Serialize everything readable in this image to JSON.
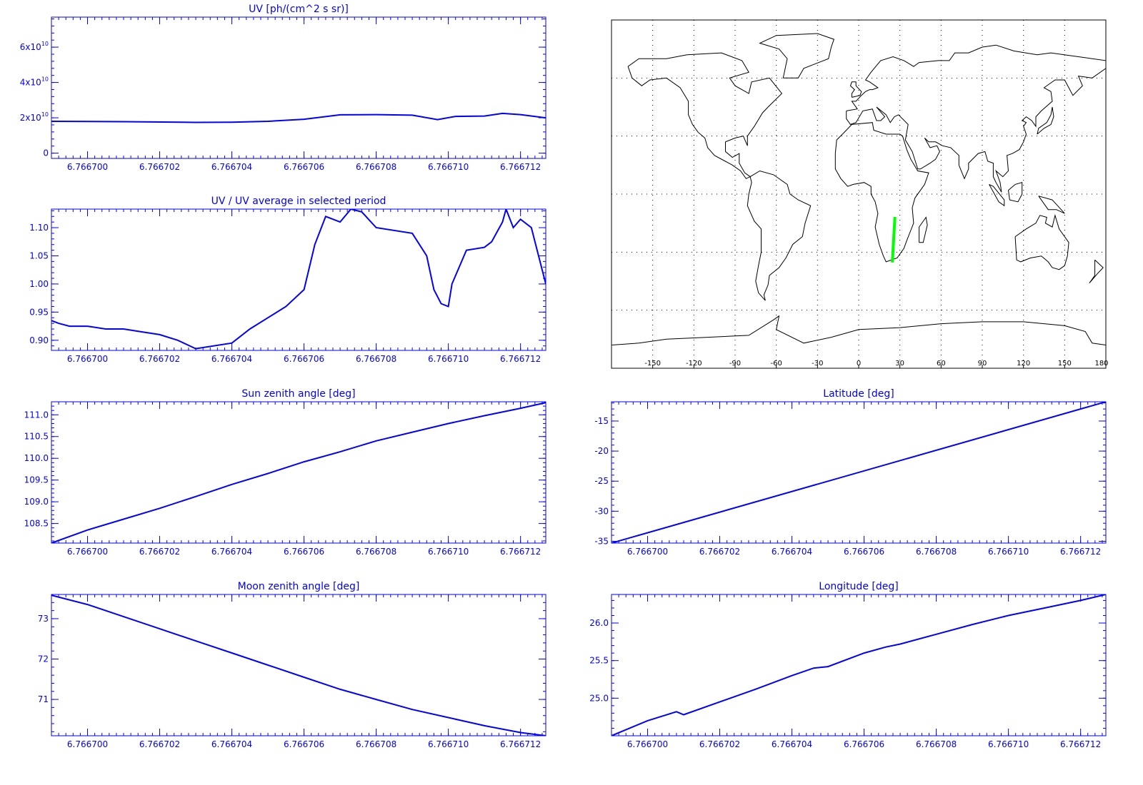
{
  "colors": {
    "axis": "#0000ff",
    "series": "#0000ff",
    "map_outline": "#000000",
    "track": "#00ff00",
    "background": "#ffffff"
  },
  "chart_data": [
    {
      "type": "line",
      "title": "UV [ph/(cm^2 s sr)]",
      "xlim": [
        6.766699,
        6.7667127
      ],
      "ylim": [
        -3000000000,
        77000000000
      ],
      "y_ticks": [
        {
          "v": 0,
          "base": "0",
          "exp": ""
        },
        {
          "v": 20000000000,
          "base": "2x10",
          "exp": "10"
        },
        {
          "v": 40000000000,
          "base": "4x10",
          "exp": "10"
        },
        {
          "v": 60000000000,
          "base": "6x10",
          "exp": "10"
        }
      ],
      "x": [
        6.766699,
        6.766701,
        6.766703,
        6.766704,
        6.766705,
        6.766706,
        6.766707,
        6.766708,
        6.766709,
        6.7667097,
        6.7667102,
        6.766711,
        6.7667115,
        6.766712,
        6.7667127
      ],
      "y": [
        18000000000,
        17800000000,
        17400000000,
        17500000000,
        18000000000,
        19200000000,
        21700000000,
        21800000000,
        21500000000,
        19000000000,
        20800000000,
        21000000000,
        22500000000,
        21800000000,
        20000000000
      ]
    },
    {
      "type": "line",
      "title": "UV / UV average in selected period",
      "xlim": [
        6.766699,
        6.7667127
      ],
      "ylim": [
        0.882,
        1.133
      ],
      "y_ticks": [
        {
          "v": 0.9,
          "base": "0.90",
          "exp": ""
        },
        {
          "v": 0.95,
          "base": "0.95",
          "exp": ""
        },
        {
          "v": 1.0,
          "base": "1.00",
          "exp": ""
        },
        {
          "v": 1.05,
          "base": "1.05",
          "exp": ""
        },
        {
          "v": 1.1,
          "base": "1.10",
          "exp": ""
        }
      ],
      "x": [
        6.766699,
        6.7666992,
        6.7666995,
        6.7667,
        6.7667005,
        6.766701,
        6.7667015,
        6.766702,
        6.7667025,
        6.766703,
        6.766704,
        6.7667045,
        6.766705,
        6.7667055,
        6.766706,
        6.7667063,
        6.7667066,
        6.766707,
        6.7667073,
        6.7667076,
        6.766708,
        6.766709,
        6.7667094,
        6.7667096,
        6.7667098,
        6.76671,
        6.7667101,
        6.7667105,
        6.766711,
        6.7667112,
        6.7667115,
        6.7667116,
        6.7667118,
        6.766712,
        6.7667123,
        6.7667127
      ],
      "y": [
        0.935,
        0.93,
        0.925,
        0.925,
        0.92,
        0.92,
        0.915,
        0.91,
        0.9,
        0.885,
        0.895,
        0.92,
        0.94,
        0.96,
        0.99,
        1.07,
        1.12,
        1.11,
        1.133,
        1.128,
        1.1,
        1.09,
        1.05,
        0.99,
        0.965,
        0.96,
        1.0,
        1.06,
        1.065,
        1.075,
        1.11,
        1.133,
        1.1,
        1.115,
        1.1,
        1.0
      ]
    },
    {
      "type": "line",
      "title": "Sun zenith angle [deg]",
      "xlim": [
        6.766699,
        6.7667127
      ],
      "ylim": [
        108.05,
        111.3
      ],
      "y_ticks": [
        {
          "v": 108.5,
          "base": "108.5",
          "exp": ""
        },
        {
          "v": 109.0,
          "base": "109.0",
          "exp": ""
        },
        {
          "v": 109.5,
          "base": "109.5",
          "exp": ""
        },
        {
          "v": 110.0,
          "base": "110.0",
          "exp": ""
        },
        {
          "v": 110.5,
          "base": "110.5",
          "exp": ""
        },
        {
          "v": 111.0,
          "base": "111.0",
          "exp": ""
        }
      ],
      "x": [
        6.766699,
        6.7667,
        6.766701,
        6.766702,
        6.766703,
        6.766704,
        6.766705,
        6.766706,
        6.766707,
        6.766708,
        6.766709,
        6.76671,
        6.766711,
        6.766712,
        6.7667127
      ],
      "y": [
        108.05,
        108.35,
        108.6,
        108.85,
        109.12,
        109.4,
        109.65,
        109.92,
        110.15,
        110.4,
        110.6,
        110.8,
        110.98,
        111.15,
        111.28
      ]
    },
    {
      "type": "line",
      "title": "Moon zenith angle [deg]",
      "xlim": [
        6.766699,
        6.7667127
      ],
      "ylim": [
        70.1,
        73.6
      ],
      "y_ticks": [
        {
          "v": 71,
          "base": "71",
          "exp": ""
        },
        {
          "v": 72,
          "base": "72",
          "exp": ""
        },
        {
          "v": 73,
          "base": "73",
          "exp": ""
        }
      ],
      "x": [
        6.766699,
        6.7667,
        6.766701,
        6.766702,
        6.766703,
        6.766704,
        6.766705,
        6.766706,
        6.766707,
        6.766708,
        6.766709,
        6.76671,
        6.766711,
        6.766712,
        6.7667127
      ],
      "y": [
        73.58,
        73.35,
        73.05,
        72.75,
        72.45,
        72.15,
        71.85,
        71.55,
        71.25,
        71.0,
        70.75,
        70.55,
        70.35,
        70.18,
        70.1
      ]
    },
    {
      "type": "line",
      "title": "Latitude [deg]",
      "xlim": [
        6.766699,
        6.7667127
      ],
      "ylim": [
        -35.3,
        -11.8
      ],
      "y_ticks": [
        {
          "v": -35,
          "base": "-35",
          "exp": ""
        },
        {
          "v": -30,
          "base": "-30",
          "exp": ""
        },
        {
          "v": -25,
          "base": "-25",
          "exp": ""
        },
        {
          "v": -20,
          "base": "-20",
          "exp": ""
        },
        {
          "v": -15,
          "base": "-15",
          "exp": ""
        }
      ],
      "x": [
        6.766699,
        6.7667127
      ],
      "y": [
        -35.3,
        -11.8
      ]
    },
    {
      "type": "line",
      "title": "Longitude [deg]",
      "xlim": [
        6.766699,
        6.7667127
      ],
      "ylim": [
        24.5,
        26.38
      ],
      "y_ticks": [
        {
          "v": 25.0,
          "base": "25.0",
          "exp": ""
        },
        {
          "v": 25.5,
          "base": "25.5",
          "exp": ""
        },
        {
          "v": 26.0,
          "base": "26.0",
          "exp": ""
        }
      ],
      "x": [
        6.766699,
        6.7667,
        6.7667008,
        6.766701,
        6.766702,
        6.766703,
        6.766704,
        6.7667046,
        6.766705,
        6.766706,
        6.7667066,
        6.766707,
        6.766708,
        6.766709,
        6.76671,
        6.766711,
        6.766712,
        6.7667127
      ],
      "y": [
        24.5,
        24.7,
        24.82,
        24.78,
        24.95,
        25.12,
        25.3,
        25.4,
        25.42,
        25.6,
        25.68,
        25.72,
        25.85,
        25.98,
        26.1,
        26.2,
        26.3,
        26.38
      ]
    },
    {
      "type": "scatter",
      "subtype": "map",
      "title": "",
      "xlim": [
        -180,
        180
      ],
      "ylim": [
        -90,
        90
      ],
      "x_ticks": [
        -150,
        -120,
        -90,
        -60,
        -30,
        0,
        30,
        60,
        90,
        120,
        150,
        180
      ],
      "x_tick_labels": [
        "-150",
        "-120",
        "-90",
        "-60",
        "-30",
        "0",
        "30",
        "60",
        "90",
        "120",
        "150",
        "180"
      ],
      "gridlines": {
        "lon_step": 30,
        "lat_step": 30,
        "style": "dotted"
      },
      "track": {
        "lon": [
          24.5,
          26.4
        ],
        "lat": [
          -35.3,
          -11.8
        ]
      }
    }
  ],
  "x_tick_labels": [
    "6.766700",
    "6.766702",
    "6.766704",
    "6.766706",
    "6.766708",
    "6.766710",
    "6.766712"
  ],
  "x_tick_values": [
    6.7667,
    6.766702,
    6.766704,
    6.766706,
    6.766708,
    6.76671,
    6.766712
  ]
}
